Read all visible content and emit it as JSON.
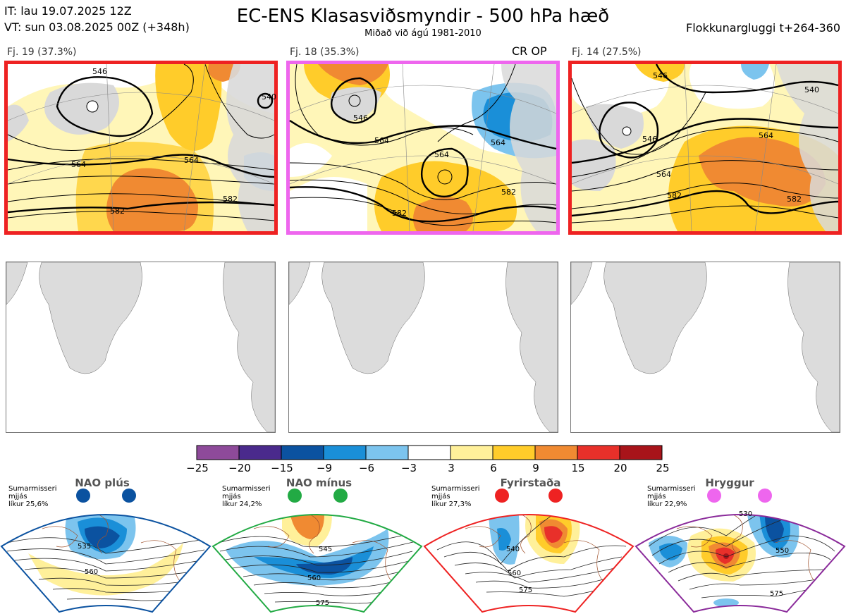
{
  "header": {
    "line1": "IT: lau 19.07.2025 12Z",
    "line2": "VT: sun 03.08.2025 00Z  (+348h)",
    "title": "EC-ENS Klasasviðsmyndir - 500 hPa hæð",
    "subtitle": "Miðað við ágú 1981-2010",
    "window": "Flokkunargluggi t+264-360"
  },
  "clusters": [
    {
      "label": "Fj. 19 (37.3%)",
      "frame_color": "#ee2222",
      "contours": [
        "546",
        "564",
        "564",
        "582",
        "582",
        "540"
      ]
    },
    {
      "label": "Fj. 18 (35.3%)",
      "frame_color": "#ee66ee",
      "tag": "CR OP",
      "contours": [
        "546",
        "564",
        "564",
        "564",
        "582",
        "582"
      ]
    },
    {
      "label": "Fj. 14 (27.5%)",
      "frame_color": "#ee2222",
      "contours": [
        "546",
        "546",
        "564",
        "564",
        "582",
        "582",
        "540"
      ]
    }
  ],
  "colorbar": {
    "ticks": [
      "−25",
      "−20",
      "−15",
      "−9",
      "−6",
      "−3",
      "3",
      "6",
      "9",
      "15",
      "20",
      "25"
    ],
    "colors": [
      "#8e4a9a",
      "#4a2a8c",
      "#0b52a0",
      "#1a8fd8",
      "#7cc4ee",
      "#ffffff",
      "#fff09a",
      "#ffcc2a",
      "#f08a32",
      "#e8302a",
      "#a8141a"
    ]
  },
  "regimes": [
    {
      "name": "NAO plús",
      "season": "Sumarmisseri",
      "line2": "mjjás",
      "prob": "líkur 25,6%",
      "color": "#0b52a0",
      "contours": [
        "535",
        "560"
      ]
    },
    {
      "name": "NAO mínus",
      "season": "Sumarmisseri",
      "line2": "mjjás",
      "prob": "líkur 24,2%",
      "color": "#22aa44",
      "contours": [
        "545",
        "560",
        "575"
      ]
    },
    {
      "name": "Fyrirstaða",
      "season": "Sumarmisseri",
      "line2": "mjjás",
      "prob": "líkur 27,3%",
      "color": "#ee2222",
      "contours": [
        "540",
        "560",
        "575"
      ]
    },
    {
      "name": "Hryggur",
      "season": "Sumarmisseri",
      "line2": "mjjás",
      "prob": "líkur 22,9%",
      "color": "#ee66ee",
      "contours": [
        "530",
        "550",
        "575"
      ]
    }
  ]
}
